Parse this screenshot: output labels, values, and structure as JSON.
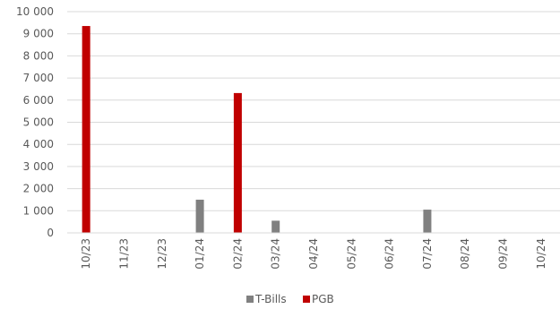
{
  "chart_data": {
    "type": "bar",
    "categories": [
      "10/23",
      "11/23",
      "12/23",
      "01/24",
      "02/24",
      "03/24",
      "04/24",
      "05/24",
      "06/24",
      "07/24",
      "08/24",
      "09/24",
      "10/24"
    ],
    "series": [
      {
        "name": "T-Bills",
        "color": "#808080",
        "values": [
          0,
          0,
          0,
          1500,
          0,
          550,
          0,
          0,
          0,
          1050,
          0,
          0,
          0
        ]
      },
      {
        "name": "PGB",
        "color": "#c00000",
        "values": [
          9350,
          0,
          0,
          0,
          6320,
          0,
          0,
          0,
          0,
          0,
          0,
          0,
          0
        ]
      }
    ],
    "yticks": [
      "0",
      "1 000",
      "2 000",
      "3 000",
      "4 000",
      "5 000",
      "6 000",
      "7 000",
      "8 000",
      "9 000",
      "10 000"
    ],
    "ylim": [
      0,
      10000
    ],
    "grid": true,
    "legend_position": "bottom"
  }
}
